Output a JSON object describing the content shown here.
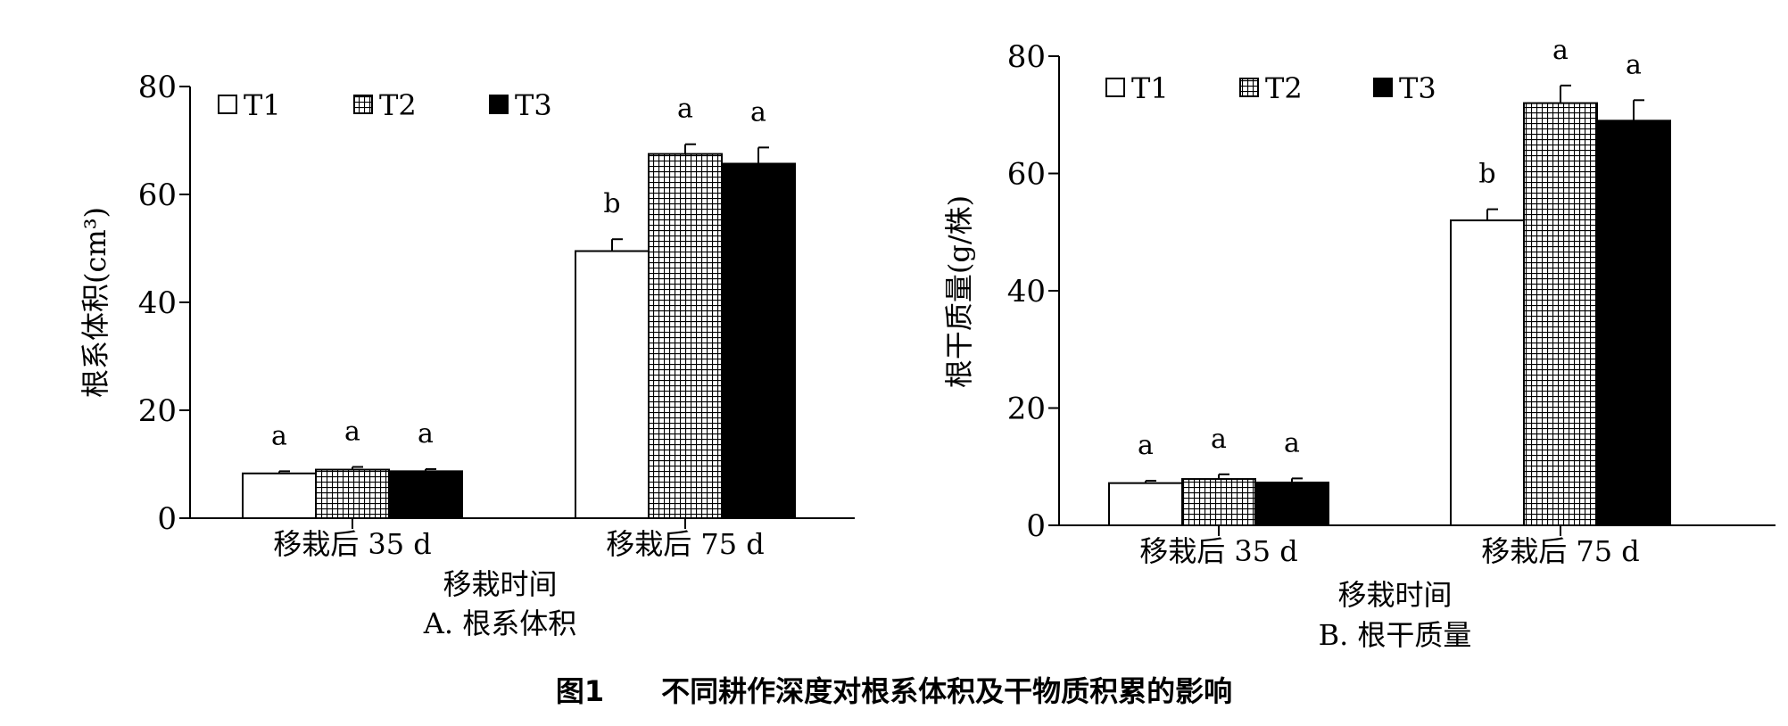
{
  "figure_caption": "图1　　不同耕作深度对根系体积及干物质积累的影响",
  "chart_data": [
    {
      "type": "bar",
      "caption": "A. 根系体积",
      "xlabel": "移栽时间",
      "ylabel": "根系体积(cm³)",
      "ylim": [
        0,
        80
      ],
      "yticks": [
        0,
        20,
        40,
        60,
        80
      ],
      "categories": [
        "移栽后 35 d",
        "移栽后 75 d"
      ],
      "legend_position": "top-left",
      "series": [
        {
          "name": "T1",
          "pattern": "white",
          "values": [
            8.3,
            49.5
          ],
          "errors": [
            0.4,
            2.2
          ],
          "letters": [
            "a",
            "b"
          ]
        },
        {
          "name": "T2",
          "pattern": "grid",
          "values": [
            9.0,
            67.5
          ],
          "errors": [
            0.5,
            1.8
          ],
          "letters": [
            "a",
            "a"
          ]
        },
        {
          "name": "T3",
          "pattern": "black",
          "values": [
            8.7,
            65.7
          ],
          "errors": [
            0.4,
            3.0
          ],
          "letters": [
            "a",
            "a"
          ]
        }
      ]
    },
    {
      "type": "bar",
      "caption": "B. 根干质量",
      "xlabel": "移栽时间",
      "ylabel": "根干质量(g/株)",
      "ylim": [
        0,
        80
      ],
      "yticks": [
        0,
        20,
        40,
        60,
        80
      ],
      "categories": [
        "移栽后 35 d",
        "移栽后 75 d"
      ],
      "legend_position": "top-left",
      "series": [
        {
          "name": "T1",
          "pattern": "white",
          "values": [
            7.2,
            52.0
          ],
          "errors": [
            0.4,
            1.9
          ],
          "letters": [
            "a",
            "b"
          ]
        },
        {
          "name": "T2",
          "pattern": "grid",
          "values": [
            7.9,
            72.0
          ],
          "errors": [
            0.8,
            3.0
          ],
          "letters": [
            "a",
            "a"
          ]
        },
        {
          "name": "T3",
          "pattern": "black",
          "values": [
            7.3,
            69.0
          ],
          "errors": [
            0.7,
            3.5
          ],
          "letters": [
            "a",
            "a"
          ]
        }
      ]
    }
  ]
}
